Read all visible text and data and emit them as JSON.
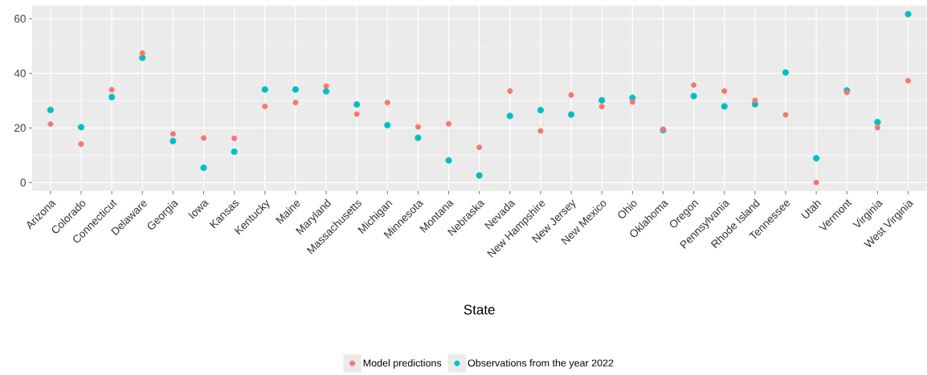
{
  "chart_data": {
    "type": "scatter",
    "xlabel": "State",
    "categories": [
      "Arizona",
      "Colorado",
      "Connecticut",
      "Delaware",
      "Georgia",
      "Iowa",
      "Kansas",
      "Kentucky",
      "Maine",
      "Maryland",
      "Massachusetts",
      "Michigan",
      "Minnesota",
      "Montana",
      "Nebraska",
      "Nevada",
      "New Hampshire",
      "New Jersey",
      "New Mexico",
      "Ohio",
      "Oklahoma",
      "Oregon",
      "Pennsylvania",
      "Rhode Island",
      "Tennessee",
      "Utah",
      "Vermont",
      "Virginia",
      "West Virginia"
    ],
    "series": [
      {
        "name": "Model predictions",
        "color": "#f8766d",
        "values": [
          21.4,
          14.1,
          34.0,
          47.4,
          17.8,
          16.3,
          16.2,
          27.9,
          29.3,
          35.3,
          25.1,
          29.3,
          20.4,
          21.5,
          12.9,
          33.5,
          18.9,
          32.1,
          27.8,
          29.5,
          19.5,
          35.7,
          33.5,
          30.1,
          24.8,
          0.0,
          33.0,
          20.1,
          37.3
        ]
      },
      {
        "name": "Observations from the year 2022",
        "color": "#00bfc4",
        "values": [
          26.6,
          20.3,
          31.3,
          45.7,
          15.2,
          5.4,
          11.3,
          34.1,
          34.1,
          33.4,
          28.6,
          21.0,
          16.4,
          8.1,
          2.6,
          24.4,
          26.5,
          24.9,
          30.1,
          31.0,
          19.2,
          31.7,
          27.9,
          28.7,
          40.3,
          8.9,
          33.7,
          22.1,
          61.7
        ]
      }
    ],
    "ylim": [
      -3.1,
      64.8
    ],
    "yticks": [
      0,
      20,
      40,
      60
    ],
    "grid": true,
    "legend": "bottom",
    "marker": "circle"
  }
}
